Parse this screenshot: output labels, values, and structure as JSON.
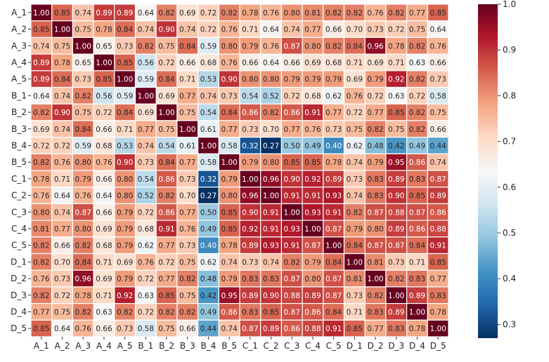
{
  "chart_data": {
    "type": "heatmap",
    "title": "",
    "xlabel": "",
    "ylabel": "",
    "labels": [
      "A_1",
      "A_2",
      "A_3",
      "A_4",
      "A_5",
      "B_1",
      "B_2",
      "B_3",
      "B_4",
      "B_5",
      "C_1",
      "C_2",
      "C_3",
      "C_4",
      "C_5",
      "D_1",
      "D_2",
      "D_3",
      "D_4",
      "D_5"
    ],
    "matrix": [
      [
        1.0,
        0.85,
        0.74,
        0.89,
        0.89,
        0.64,
        0.82,
        0.69,
        0.72,
        0.82,
        0.78,
        0.76,
        0.8,
        0.81,
        0.82,
        0.82,
        0.76,
        0.82,
        0.77,
        0.85
      ],
      [
        0.85,
        1.0,
        0.75,
        0.78,
        0.84,
        0.74,
        0.9,
        0.74,
        0.72,
        0.76,
        0.71,
        0.64,
        0.74,
        0.77,
        0.66,
        0.7,
        0.73,
        0.72,
        0.75,
        0.64
      ],
      [
        0.74,
        0.75,
        1.0,
        0.65,
        0.73,
        0.82,
        0.75,
        0.84,
        0.59,
        0.8,
        0.79,
        0.76,
        0.87,
        0.8,
        0.82,
        0.84,
        0.96,
        0.78,
        0.82,
        0.76
      ],
      [
        0.89,
        0.78,
        0.65,
        1.0,
        0.85,
        0.56,
        0.72,
        0.66,
        0.68,
        0.76,
        0.66,
        0.64,
        0.66,
        0.69,
        0.68,
        0.71,
        0.69,
        0.71,
        0.63,
        0.66
      ],
      [
        0.89,
        0.84,
        0.73,
        0.85,
        1.0,
        0.59,
        0.84,
        0.71,
        0.53,
        0.9,
        0.8,
        0.8,
        0.79,
        0.79,
        0.79,
        0.69,
        0.79,
        0.92,
        0.82,
        0.73
      ],
      [
        0.64,
        0.74,
        0.82,
        0.56,
        0.59,
        1.0,
        0.69,
        0.77,
        0.74,
        0.73,
        0.54,
        0.52,
        0.72,
        0.68,
        0.62,
        0.76,
        0.72,
        0.63,
        0.72,
        0.58
      ],
      [
        0.82,
        0.9,
        0.75,
        0.72,
        0.84,
        0.69,
        1.0,
        0.75,
        0.54,
        0.84,
        0.86,
        0.82,
        0.86,
        0.91,
        0.77,
        0.72,
        0.77,
        0.85,
        0.82,
        0.75
      ],
      [
        0.69,
        0.74,
        0.84,
        0.66,
        0.71,
        0.77,
        0.75,
        1.0,
        0.61,
        0.77,
        0.73,
        0.7,
        0.77,
        0.76,
        0.73,
        0.75,
        0.82,
        0.75,
        0.82,
        0.66
      ],
      [
        0.72,
        0.72,
        0.59,
        0.68,
        0.53,
        0.74,
        0.54,
        0.61,
        1.0,
        0.58,
        0.32,
        0.27,
        0.5,
        0.49,
        0.4,
        0.62,
        0.48,
        0.42,
        0.49,
        0.44
      ],
      [
        0.82,
        0.76,
        0.8,
        0.76,
        0.9,
        0.73,
        0.84,
        0.77,
        0.58,
        1.0,
        0.79,
        0.8,
        0.85,
        0.85,
        0.78,
        0.74,
        0.79,
        0.95,
        0.86,
        0.74
      ],
      [
        0.78,
        0.71,
        0.79,
        0.66,
        0.8,
        0.54,
        0.86,
        0.73,
        0.32,
        0.79,
        1.0,
        0.96,
        0.9,
        0.92,
        0.89,
        0.73,
        0.83,
        0.89,
        0.83,
        0.87
      ],
      [
        0.76,
        0.64,
        0.76,
        0.64,
        0.8,
        0.52,
        0.82,
        0.7,
        0.27,
        0.8,
        0.96,
        1.0,
        0.91,
        0.91,
        0.93,
        0.74,
        0.83,
        0.9,
        0.85,
        0.89
      ],
      [
        0.8,
        0.74,
        0.87,
        0.66,
        0.79,
        0.72,
        0.86,
        0.77,
        0.5,
        0.85,
        0.9,
        0.91,
        1.0,
        0.93,
        0.91,
        0.82,
        0.87,
        0.88,
        0.87,
        0.86
      ],
      [
        0.81,
        0.77,
        0.8,
        0.69,
        0.79,
        0.68,
        0.91,
        0.76,
        0.49,
        0.85,
        0.92,
        0.91,
        0.93,
        1.0,
        0.87,
        0.79,
        0.8,
        0.89,
        0.86,
        0.88
      ],
      [
        0.82,
        0.66,
        0.82,
        0.68,
        0.79,
        0.62,
        0.77,
        0.73,
        0.4,
        0.78,
        0.89,
        0.93,
        0.91,
        0.87,
        1.0,
        0.84,
        0.87,
        0.87,
        0.84,
        0.91
      ],
      [
        0.82,
        0.7,
        0.84,
        0.71,
        0.69,
        0.76,
        0.72,
        0.75,
        0.62,
        0.74,
        0.73,
        0.74,
        0.82,
        0.79,
        0.84,
        1.0,
        0.81,
        0.73,
        0.71,
        0.85
      ],
      [
        0.76,
        0.73,
        0.96,
        0.69,
        0.79,
        0.72,
        0.77,
        0.82,
        0.48,
        0.79,
        0.83,
        0.83,
        0.87,
        0.8,
        0.87,
        0.81,
        1.0,
        0.82,
        0.83,
        0.77
      ],
      [
        0.82,
        0.72,
        0.78,
        0.71,
        0.92,
        0.63,
        0.85,
        0.75,
        0.42,
        0.95,
        0.89,
        0.9,
        0.88,
        0.89,
        0.87,
        0.73,
        0.82,
        1.0,
        0.89,
        0.83
      ],
      [
        0.77,
        0.75,
        0.82,
        0.63,
        0.82,
        0.72,
        0.82,
        0.82,
        0.49,
        0.86,
        0.83,
        0.85,
        0.87,
        0.86,
        0.84,
        0.71,
        0.83,
        0.89,
        1.0,
        0.78
      ],
      [
        0.85,
        0.64,
        0.76,
        0.66,
        0.73,
        0.58,
        0.75,
        0.66,
        0.44,
        0.74,
        0.87,
        0.89,
        0.86,
        0.88,
        0.91,
        0.85,
        0.77,
        0.83,
        0.78,
        1.0
      ]
    ],
    "value_format": "2 decimals",
    "colormap": "RdBu_r",
    "vmin": 0.27,
    "vmax": 1.0,
    "colorbar_ticks": [
      "1.0",
      "0.9",
      "0.8",
      "0.7",
      "0.6",
      "0.5",
      "0.4",
      "0.3"
    ],
    "grid": false,
    "cell_border_color": "#ffffff"
  }
}
